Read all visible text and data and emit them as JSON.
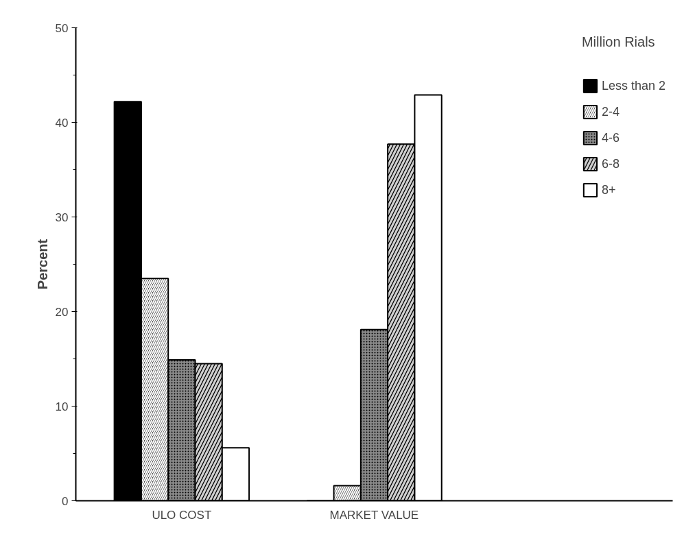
{
  "chart_data": {
    "type": "bar",
    "categories": [
      "ULO COST",
      "MARKET VALUE"
    ],
    "ylabel": "Percent",
    "legend_title": "Million Rials",
    "legend": "right",
    "grid": false,
    "ylim": [
      0,
      50
    ],
    "yticks": [
      0,
      10,
      20,
      30,
      40,
      50
    ],
    "series": [
      {
        "name": "Less than 2",
        "color": "#000000",
        "values": [
          42.2,
          0
        ]
      },
      {
        "name": "2-4",
        "color": "#4a4a4a",
        "values": [
          23.5,
          1.6
        ]
      },
      {
        "name": "4-6",
        "color": "#8a8a8a",
        "values": [
          14.9,
          18.1
        ]
      },
      {
        "name": "6-8",
        "color": "#d0d0d0",
        "values": [
          14.5,
          37.7
        ]
      },
      {
        "name": "8+",
        "color": "#ffffff",
        "values": [
          5.6,
          42.9
        ]
      }
    ]
  }
}
